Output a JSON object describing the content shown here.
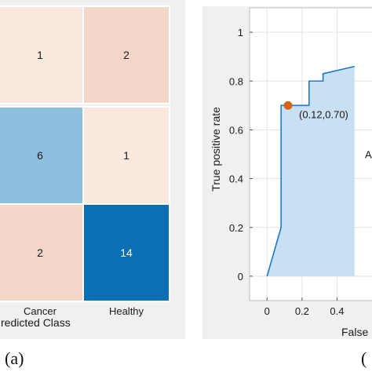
{
  "panel_a_label": "(a)",
  "panel_b_label": "(",
  "chart_data": [
    {
      "type": "heatmap",
      "xlabel": "redicted Class",
      "x_tick_labels": [
        "Cancer",
        "Healthy"
      ],
      "cells": [
        {
          "row": 0,
          "col": 0,
          "value": 1,
          "color": "#fbe8df"
        },
        {
          "row": 0,
          "col": 1,
          "value": 2,
          "color": "#f3d6c7"
        },
        {
          "row": 1,
          "col": 0,
          "value": 6,
          "color": "#8dbfde"
        },
        {
          "row": 1,
          "col": 1,
          "value": 1,
          "color": "#fbe8df"
        },
        {
          "row": 2,
          "col": 0,
          "value": 2,
          "color": "#f3d6c7"
        },
        {
          "row": 2,
          "col": 1,
          "value": 14,
          "color": "#0a6fb5"
        }
      ]
    },
    {
      "type": "area",
      "ylabel": "True positive rate",
      "xlabel": "False",
      "xlim": [
        -0.1,
        0.6
      ],
      "ylim": [
        -0.1,
        1.1
      ],
      "x_ticks": [
        0,
        0.2,
        0.4
      ],
      "y_ticks": [
        0,
        0.2,
        0.4,
        0.6,
        0.8,
        1
      ],
      "x_tick_labels": [
        "0",
        "0.2",
        "0.4"
      ],
      "y_tick_labels": [
        "0",
        "0.2",
        "0.4",
        "0.6",
        "0.8",
        "1"
      ],
      "grid": true,
      "roc_x": [
        0,
        0.08,
        0.08,
        0.24,
        0.24,
        0.32,
        0.32,
        0.5
      ],
      "roc_y": [
        0,
        0.2,
        0.7,
        0.7,
        0.8,
        0.8,
        0.83,
        0.86
      ],
      "operating_point": {
        "x": 0.12,
        "y": 0.7,
        "label": "(0.12,0.70)"
      },
      "area_note": "A",
      "line_color": "#1f77c9",
      "fill_color": "#c8e0f2",
      "point_color": "#d9601a"
    }
  ]
}
